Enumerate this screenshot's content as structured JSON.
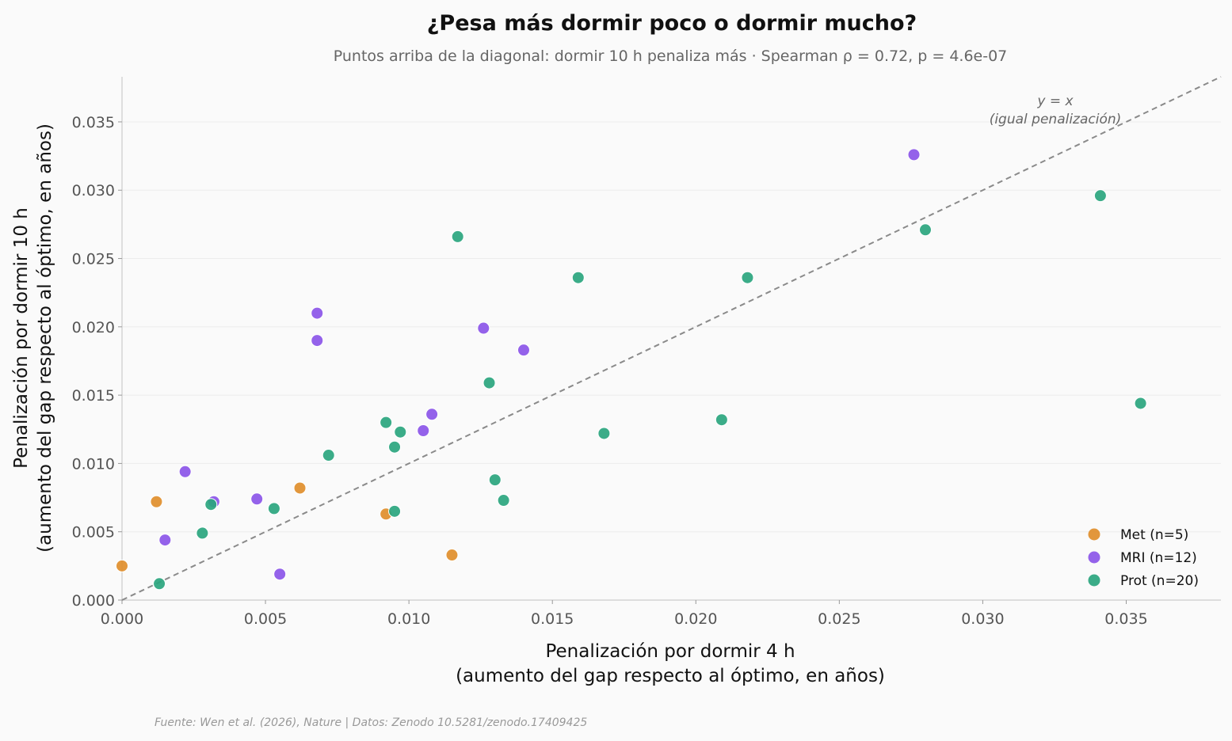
{
  "chart_data": {
    "type": "scatter",
    "title": "¿Pesa más dormir poco o dormir mucho?",
    "subtitle": "Puntos arriba de la diagonal: dormir 10 h penaliza más · Spearman ρ = 0.72, p = 4.6e-07",
    "xlabel": [
      "Penalización por dormir 4 h",
      "(aumento del gap respecto al óptimo, en años)"
    ],
    "ylabel": [
      "Penalización por dormir 10 h",
      "(aumento del gap respecto al óptimo, en años)"
    ],
    "xlim": [
      0,
      0.0383
    ],
    "ylim": [
      0,
      0.0383
    ],
    "x_ticks": [
      0.0,
      0.005,
      0.01,
      0.015,
      0.02,
      0.025,
      0.03,
      0.035
    ],
    "x_tick_labels": [
      "0.000",
      "0.005",
      "0.010",
      "0.015",
      "0.020",
      "0.025",
      "0.030",
      "0.035"
    ],
    "y_ticks": [
      0.0,
      0.005,
      0.01,
      0.015,
      0.02,
      0.025,
      0.03,
      0.035
    ],
    "y_tick_labels": [
      "0.000",
      "0.005",
      "0.010",
      "0.015",
      "0.020",
      "0.025",
      "0.030",
      "0.035"
    ],
    "grid": "horizontal",
    "legend_position": "bottom-right",
    "diagonal_label": [
      "y = x",
      "(igual penalización)"
    ],
    "source": "Fuente: Wen et al. (2026), Nature | Datos: Zenodo 10.5281/zenodo.17409425",
    "series": [
      {
        "name": "Met (n=5)",
        "color": "#e08e2b",
        "points": [
          [
            0.0,
            0.0025
          ],
          [
            0.0012,
            0.0072
          ],
          [
            0.0062,
            0.0082
          ],
          [
            0.0092,
            0.0063
          ],
          [
            0.0115,
            0.0033
          ]
        ]
      },
      {
        "name": "MRI (n=12)",
        "color": "#8b55e8",
        "points": [
          [
            0.0015,
            0.0044
          ],
          [
            0.0022,
            0.0094
          ],
          [
            0.0032,
            0.0072
          ],
          [
            0.0047,
            0.0074
          ],
          [
            0.0055,
            0.0019
          ],
          [
            0.0068,
            0.021
          ],
          [
            0.0068,
            0.019
          ],
          [
            0.0105,
            0.0124
          ],
          [
            0.0108,
            0.0136
          ],
          [
            0.0126,
            0.0199
          ],
          [
            0.014,
            0.0183
          ],
          [
            0.0276,
            0.0326
          ]
        ]
      },
      {
        "name": "Prot (n=20)",
        "color": "#2aa57e",
        "points": [
          [
            0.0013,
            0.0012
          ],
          [
            0.0028,
            0.0049
          ],
          [
            0.0031,
            0.007
          ],
          [
            0.0053,
            0.0067
          ],
          [
            0.0072,
            0.0106
          ],
          [
            0.0092,
            0.013
          ],
          [
            0.0095,
            0.0112
          ],
          [
            0.0095,
            0.0065
          ],
          [
            0.0097,
            0.0123
          ],
          [
            0.0117,
            0.0266
          ],
          [
            0.0128,
            0.0159
          ],
          [
            0.013,
            0.0088
          ],
          [
            0.0133,
            0.0073
          ],
          [
            0.0159,
            0.0236
          ],
          [
            0.0168,
            0.0122
          ],
          [
            0.0209,
            0.0132
          ],
          [
            0.0218,
            0.0236
          ],
          [
            0.028,
            0.0271
          ],
          [
            0.0341,
            0.0296
          ],
          [
            0.0355,
            0.0144
          ]
        ]
      }
    ]
  }
}
